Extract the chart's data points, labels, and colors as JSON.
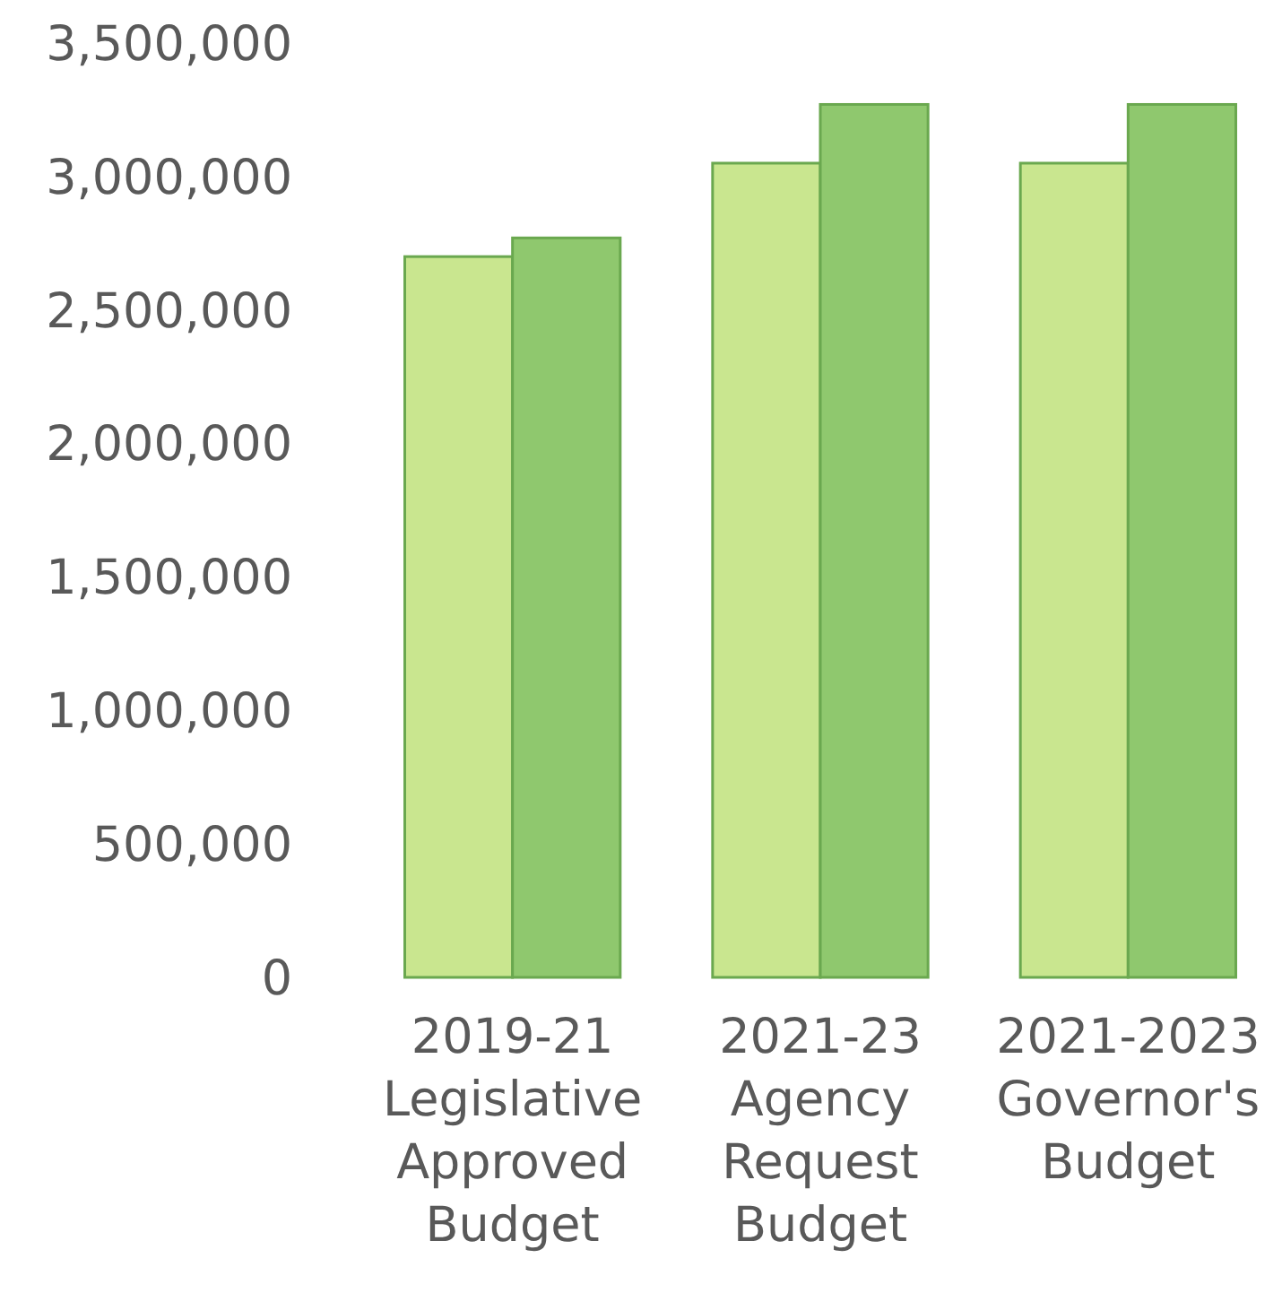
{
  "chart_data": {
    "type": "bar",
    "categories": [
      "2019-21 Legislative Approved Budget",
      "2021-23 Agency Request Budget",
      "2021-2023 Governor's Budget"
    ],
    "series": [
      {
        "color": "#c9e68f",
        "values": [
          2700000,
          3050000,
          3050000
        ]
      },
      {
        "color": "#8fc86e",
        "values": [
          2770000,
          3270000,
          3270000
        ]
      }
    ],
    "ylim": [
      0,
      3500000
    ],
    "yticks": [
      {
        "value": 0,
        "label": "0"
      },
      {
        "value": 500000,
        "label": "500,000"
      },
      {
        "value": 1000000,
        "label": "1,000,000"
      },
      {
        "value": 1500000,
        "label": "1,500,000"
      },
      {
        "value": 2000000,
        "label": "2,000,000"
      },
      {
        "value": 2500000,
        "label": "2,500,000"
      },
      {
        "value": 3000000,
        "label": "3,000,000"
      },
      {
        "value": 3500000,
        "label": "3,500,000"
      }
    ],
    "grid": false
  }
}
